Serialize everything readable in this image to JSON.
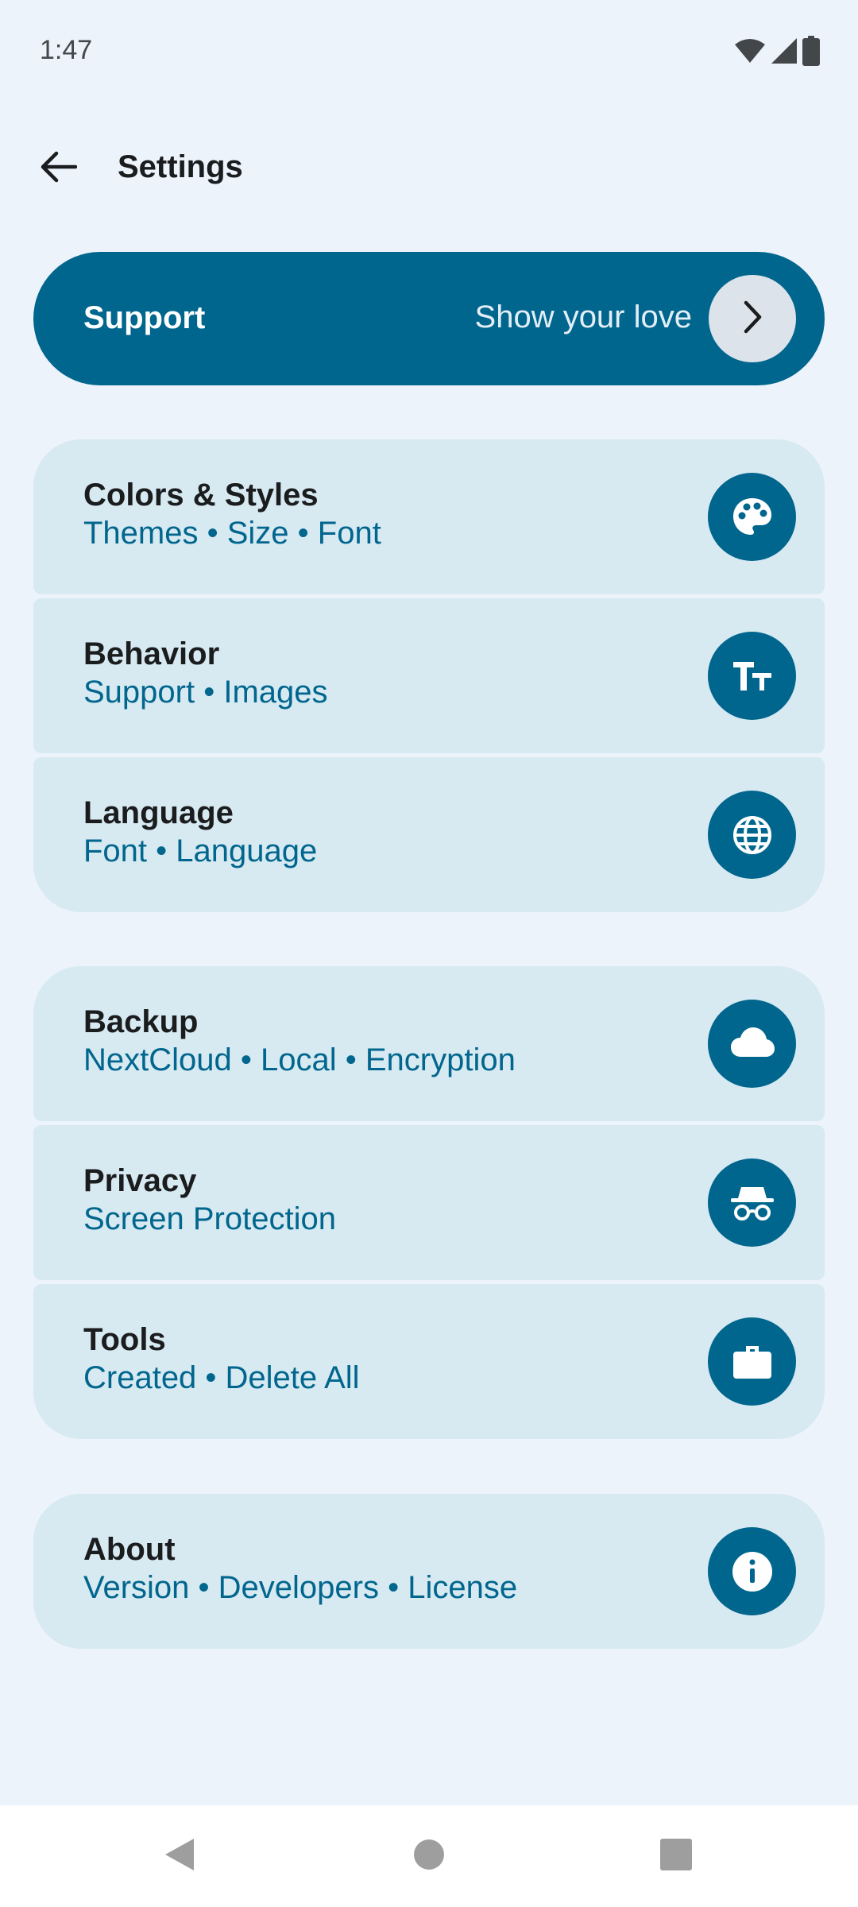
{
  "status_bar": {
    "time": "1:47",
    "icons": [
      "wifi-icon",
      "signal-icon",
      "battery-icon"
    ]
  },
  "topbar": {
    "title": "Settings",
    "back_icon": "arrow-left-icon"
  },
  "support": {
    "title": "Support",
    "subtitle": "Show your love",
    "icon": "chevron-right-icon"
  },
  "groups": [
    {
      "items": [
        {
          "title": "Colors & Styles",
          "subtitle": "Themes • Size • Font",
          "icon": "palette-icon"
        },
        {
          "title": "Behavior",
          "subtitle": "Support • Images",
          "icon": "text-size-icon"
        },
        {
          "title": "Language",
          "subtitle": "Font • Language",
          "icon": "globe-icon"
        }
      ]
    },
    {
      "items": [
        {
          "title": "Backup",
          "subtitle": "NextCloud • Local • Encryption",
          "icon": "cloud-icon"
        },
        {
          "title": "Privacy",
          "subtitle": "Screen Protection",
          "icon": "incognito-icon"
        },
        {
          "title": "Tools",
          "subtitle": "Created • Delete All",
          "icon": "briefcase-icon"
        }
      ]
    },
    {
      "items": [
        {
          "title": "About",
          "subtitle": "Version • Developers • License",
          "icon": "info-icon"
        }
      ]
    }
  ],
  "colors": {
    "background": "#ecf3fb",
    "accent": "#01668e",
    "card": "#d7e9f1",
    "chevron_circle": "#dde3ea"
  },
  "nav_bar": {
    "buttons": [
      "back-triangle-icon",
      "home-circle-icon",
      "recents-square-icon"
    ]
  }
}
